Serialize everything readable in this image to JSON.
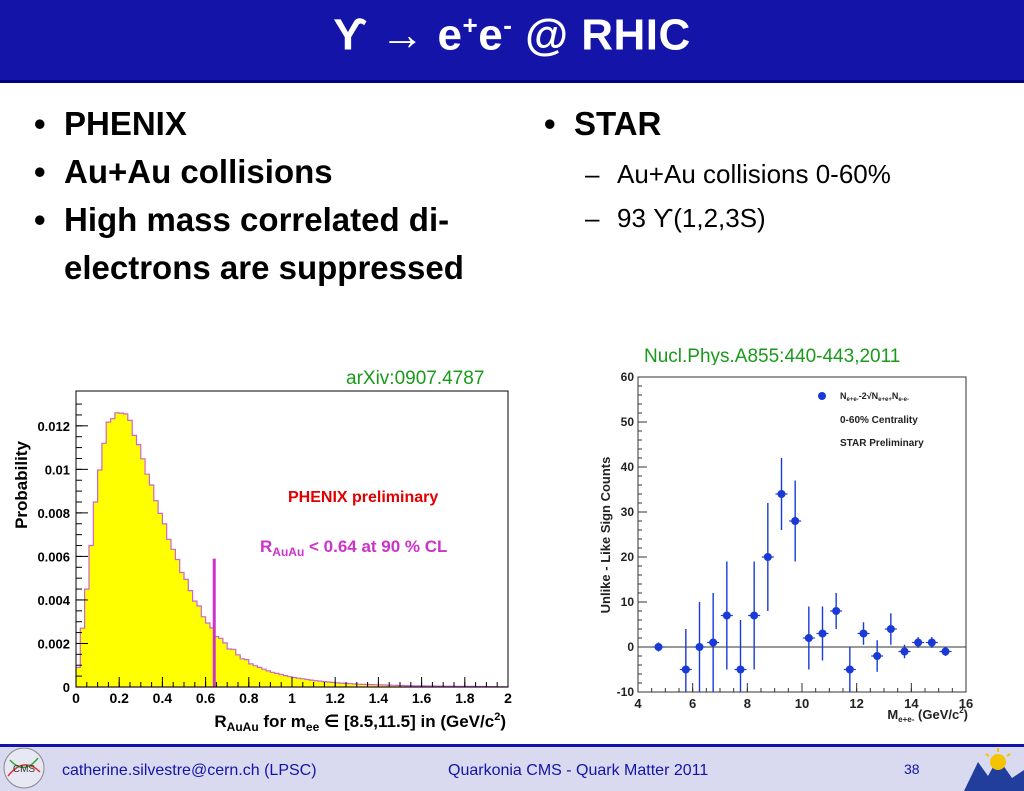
{
  "slide": {
    "title_prefix": "ϒ → e",
    "title_sup1": "+",
    "title_mid": "e",
    "title_sup2": "-",
    "title_suffix": " @ RHIC",
    "page_number": "38"
  },
  "left": {
    "items": [
      "PHENIX",
      "Au+Au collisions",
      "High mass correlated di-electrons are suppressed"
    ]
  },
  "right": {
    "heading": "STAR",
    "sub_items": [
      "Au+Au collisions 0-60%",
      "93 ϒ(1,2,3S)"
    ]
  },
  "refs": {
    "phenix": "arXiv:0907.4787",
    "star": "Nucl.Phys.A855:440-443,2011"
  },
  "footer": {
    "author": "catherine.silvestre@cern.ch (LPSC)",
    "talk": "Quarkonia CMS - Quark Matter 2011",
    "page": "38",
    "cms_logo_text": "CMS"
  },
  "colors": {
    "title_bg": "#1414a8",
    "hist_fill": "#ffff00",
    "hist_edge": "#cc66cc",
    "limit_line": "#cc33cc",
    "phenix_label": "#e00000",
    "star_points": "#1a3ad8"
  },
  "chart_data": [
    {
      "type": "area",
      "xlabel_main": "R",
      "xlabel_sub": "AuAu",
      "xlabel_for": " for m",
      "xlabel_ee": "ee",
      "xlabel_rest": " ∈ [8.5,11.5] in (GeV/c",
      "xlabel_sq": "2",
      "xlabel_end": ")",
      "ylabel": "Probability",
      "xlim": [
        0,
        2
      ],
      "ylim": [
        0,
        0.0136
      ],
      "xticks": [
        "0",
        "0.2",
        "0.4",
        "0.6",
        "0.8",
        "1",
        "1.2",
        "1.4",
        "1.6",
        "1.8",
        "2"
      ],
      "yticks": [
        "0",
        "0.002",
        "0.004",
        "0.006",
        "0.008",
        "0.01",
        "0.012"
      ],
      "annotation": "PHENIX preliminary",
      "limit_text_main": "R",
      "limit_text_sub": "AuAu",
      "limit_text_rest": " < 0.64 at 90 % CL",
      "limit_x": 0.64,
      "x": [
        0,
        0.05,
        0.1,
        0.15,
        0.2,
        0.22,
        0.25,
        0.3,
        0.35,
        0.4,
        0.45,
        0.5,
        0.55,
        0.6,
        0.64,
        0.7,
        0.8,
        0.9,
        1.0,
        1.1,
        1.2,
        1.3,
        1.4,
        1.5,
        1.6,
        1.7,
        1.8,
        1.9,
        2.0
      ],
      "y": [
        0.0,
        0.0045,
        0.0095,
        0.0122,
        0.0126,
        0.0127,
        0.0122,
        0.0108,
        0.0092,
        0.0077,
        0.0063,
        0.0051,
        0.004,
        0.0031,
        0.0025,
        0.0019,
        0.0011,
        0.0007,
        0.00045,
        0.0003,
        0.0002,
        0.00013,
        0.0001,
        7e-05,
        5e-05,
        4e-05,
        3e-05,
        2e-05,
        1e-05
      ]
    },
    {
      "type": "scatter",
      "xlabel_main": "M",
      "xlabel_sub": "e+e-",
      "xlabel_rest": " (GeV/c",
      "xlabel_sq": "2",
      "xlabel_end": ")",
      "ylabel": "Unlike - Like Sign Counts",
      "xlim": [
        4,
        16
      ],
      "ylim": [
        -10,
        60
      ],
      "xticks": [
        "4",
        "6",
        "8",
        "10",
        "12",
        "14",
        "16"
      ],
      "yticks": [
        "-10",
        "0",
        "10",
        "20",
        "30",
        "40",
        "50",
        "60"
      ],
      "legend_formula_a": "N",
      "legend_formula_asub": "e+e-",
      "legend_formula_b": "-2√N",
      "legend_formula_bsub": "e+e+",
      "legend_formula_c": "N",
      "legend_formula_csub": "e-e-",
      "legend_lines": [
        "0-60% Centrality",
        "STAR Preliminary"
      ],
      "legend_placement": "top-right",
      "x": [
        4.75,
        5.75,
        6.25,
        6.75,
        7.25,
        7.75,
        8.25,
        8.75,
        9.25,
        9.75,
        10.25,
        10.75,
        11.25,
        11.75,
        12.25,
        12.75,
        13.25,
        13.75,
        14.25,
        14.75,
        15.25
      ],
      "y": [
        0,
        -5,
        0,
        1,
        7,
        -5,
        7,
        20,
        34,
        28,
        2,
        3,
        8,
        -5,
        3,
        -2,
        4,
        -1,
        1,
        1,
        -1
      ],
      "yerr": [
        1,
        9,
        10,
        11,
        12,
        11,
        12,
        12,
        8,
        9,
        7,
        6,
        4,
        5,
        2.5,
        3.5,
        3.5,
        1.5,
        1.2,
        1.2,
        1
      ]
    }
  ]
}
